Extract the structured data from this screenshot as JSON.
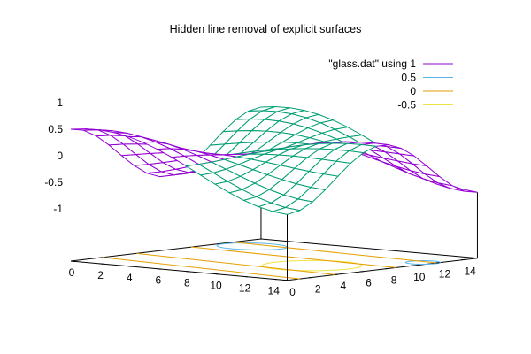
{
  "chart_data": {
    "type": "surface3d",
    "title": "Hidden line removal of explicit surfaces",
    "colors": {
      "surface_top": "#9400d3",
      "surface_bottom": "#009e73",
      "contour_0.5": "#56b4e9",
      "contour_0": "#e69f00",
      "contour_-0.5": "#f0e442",
      "axis": "#000000"
    },
    "legend": {
      "placement": "top-right",
      "entries": [
        {
          "label": "\"glass.dat\" using 1",
          "color": "#9400d3"
        },
        {
          "label": "0.5",
          "color": "#56b4e9"
        },
        {
          "label": "0",
          "color": "#e69f00"
        },
        {
          "label": "-0.5",
          "color": "#f0e442"
        }
      ]
    },
    "x_ticks": [
      "0",
      "2",
      "4",
      "6",
      "8",
      "10",
      "12",
      "14"
    ],
    "y_ticks": [
      "0",
      "2",
      "4",
      "6",
      "8",
      "10",
      "12",
      "14"
    ],
    "z_ticks": [
      "1",
      "0.5",
      "0",
      "-0.5",
      "-1"
    ],
    "xlim": [
      0,
      15
    ],
    "ylim": [
      0,
      15
    ],
    "zlim": [
      -1,
      1
    ],
    "grid_size": [
      16,
      16
    ],
    "surface": "glass-like surface on a 16x16 grid with contour levels 0.5, 0 and -0.5 projected onto the base"
  }
}
